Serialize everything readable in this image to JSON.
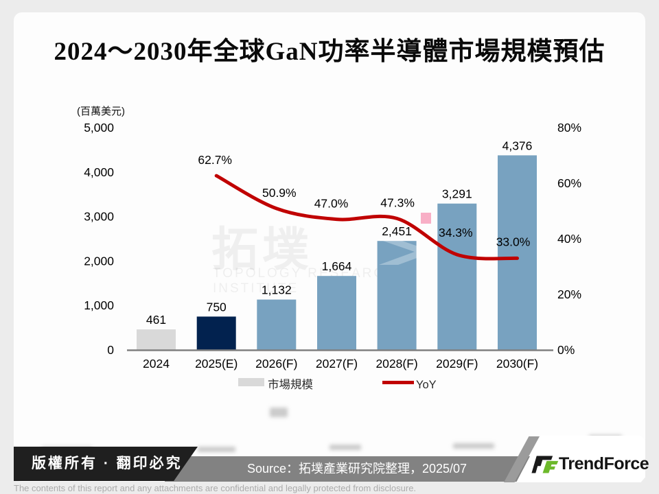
{
  "title": "2024～2030年全球GaN功率半導體市場規模預估",
  "watermark": {
    "cjk": "拓墣",
    "latin": "TOPOLOGY RESEARCH INSTITUTE"
  },
  "chart_data": {
    "type": "bar",
    "combo": "bar+line",
    "title": "2024～2030年全球GaN功率半導體市場規模預估",
    "categories": [
      "2024",
      "2025(E)",
      "2026(F)",
      "2027(F)",
      "2028(F)",
      "2029(F)",
      "2030(F)"
    ],
    "series": [
      {
        "name": "市場規模",
        "type": "bar",
        "axis": "left",
        "values": [
          461,
          750,
          1132,
          1664,
          2451,
          3291,
          4376
        ],
        "labels": [
          "461",
          "750",
          "1,132",
          "1,664",
          "2,451",
          "3,291",
          "4,376"
        ]
      },
      {
        "name": "YoY",
        "type": "line",
        "axis": "right",
        "values": [
          null,
          62.7,
          50.9,
          47.0,
          47.3,
          34.3,
          33.0
        ],
        "labels": [
          null,
          "62.7%",
          "50.9%",
          "47.0%",
          "47.3%",
          "34.3%",
          "33.0%"
        ]
      }
    ],
    "left_axis": {
      "title": "(百萬美元)",
      "min": 0,
      "max": 5000,
      "ticks": [
        "5,000",
        "4,000",
        "3,000",
        "2,000",
        "1,000",
        "0"
      ]
    },
    "right_axis": {
      "min": 0,
      "max": 80,
      "ticks": [
        "80%",
        "60%",
        "40%",
        "20%",
        "0%"
      ]
    },
    "legend": {
      "position": "bottom",
      "items": [
        "市場規模",
        "YoY"
      ]
    },
    "grid": false
  },
  "colors": {
    "bar_colors": [
      "#D9D9D9",
      "#02224F",
      "#78A2C0",
      "#78A2C0",
      "#78A2C0",
      "#78A2C0",
      "#78A2C0"
    ],
    "yoy_line": "#C00000",
    "axis_line": "#808080",
    "stray_marker_pink": "#F8AFC6",
    "legend_text": "#2B2B2B",
    "footer_black": "#1F1F1F",
    "footer_gray": "#828282",
    "brand_green": "#6DB92B"
  },
  "footer": {
    "copyright": "版權所有 · 翻印必究",
    "source": "Source：拓墣產業研究院整理，2025/07",
    "brand": "TrendForce",
    "disclaimer": "The contents of this report and any attachments are confidential and legally protected from disclosure."
  }
}
